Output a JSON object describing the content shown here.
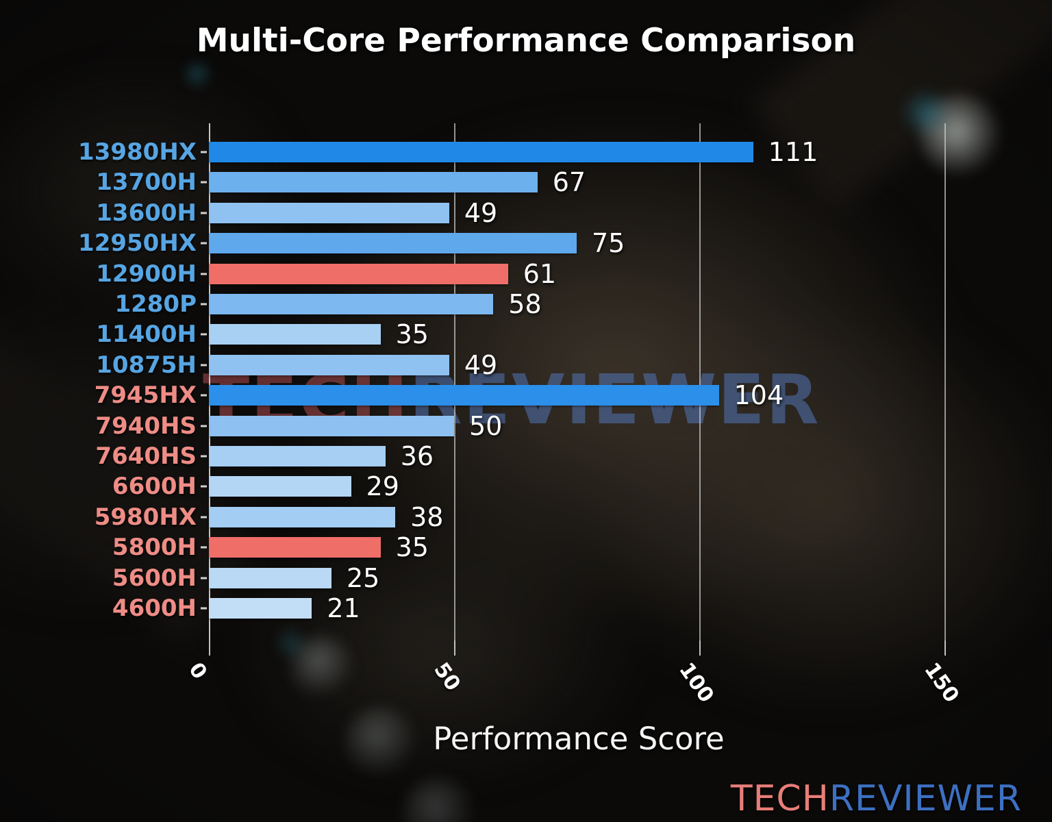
{
  "title": "Multi-Core Performance Comparison",
  "watermark": {
    "tech": "TECH",
    "reviewer": "REVIEWER"
  },
  "logo": {
    "tech": "TECH",
    "reviewer": "REVIEWER",
    "tech_color": "#e87e78",
    "reviewer_color": "#3d70c2"
  },
  "colors": {
    "intel_label": "#57a5e3",
    "amd_label": "#ee8c86",
    "highlight_bar": "#f06e68",
    "grid": "#d0d0d0",
    "text": "#ffffff"
  },
  "chart_data": {
    "type": "bar",
    "orientation": "horizontal",
    "title": "Multi-Core Performance Comparison",
    "xlabel": "Performance Score",
    "xlim": [
      0,
      161
    ],
    "xticks": [
      0,
      50,
      100,
      150
    ],
    "grid": true,
    "legend": false,
    "categories": [
      "13980HX",
      "13700H",
      "13600H",
      "12950HX",
      "12900H",
      "1280P",
      "11400H",
      "10875H",
      "7945HX",
      "7940HS",
      "7640HS",
      "6600H",
      "5980HX",
      "5800H",
      "5600H",
      "4600H"
    ],
    "values": [
      111,
      67,
      49,
      75,
      61,
      58,
      35,
      49,
      104,
      50,
      36,
      29,
      38,
      35,
      25,
      21
    ],
    "bars": [
      {
        "label": "13980HX",
        "value": 111,
        "vendor": "intel",
        "bar_color": "#2089e8"
      },
      {
        "label": "13700H",
        "value": 67,
        "vendor": "intel",
        "bar_color": "#6cb0ee"
      },
      {
        "label": "13600H",
        "value": 49,
        "vendor": "intel",
        "bar_color": "#8fc2f1"
      },
      {
        "label": "12950HX",
        "value": 75,
        "vendor": "intel",
        "bar_color": "#5fa8ec"
      },
      {
        "label": "12900H",
        "value": 61,
        "vendor": "intel",
        "bar_color": "#f06e68"
      },
      {
        "label": "1280P",
        "value": 58,
        "vendor": "intel",
        "bar_color": "#7db8f0"
      },
      {
        "label": "11400H",
        "value": 35,
        "vendor": "intel",
        "bar_color": "#a8d0f3"
      },
      {
        "label": "10875H",
        "value": 49,
        "vendor": "intel",
        "bar_color": "#8fc2f1"
      },
      {
        "label": "7945HX",
        "value": 104,
        "vendor": "amd",
        "bar_color": "#2c8fe9"
      },
      {
        "label": "7940HS",
        "value": 50,
        "vendor": "amd",
        "bar_color": "#8ec1f1"
      },
      {
        "label": "7640HS",
        "value": 36,
        "vendor": "amd",
        "bar_color": "#a6cff3"
      },
      {
        "label": "6600H",
        "value": 29,
        "vendor": "amd",
        "bar_color": "#b3d6f4"
      },
      {
        "label": "5980HX",
        "value": 38,
        "vendor": "amd",
        "bar_color": "#a3cdf3"
      },
      {
        "label": "5800H",
        "value": 35,
        "vendor": "amd",
        "bar_color": "#f06e68"
      },
      {
        "label": "5600H",
        "value": 25,
        "vendor": "amd",
        "bar_color": "#b9d9f5"
      },
      {
        "label": "4600H",
        "value": 21,
        "vendor": "amd",
        "bar_color": "#c2def6"
      }
    ]
  }
}
